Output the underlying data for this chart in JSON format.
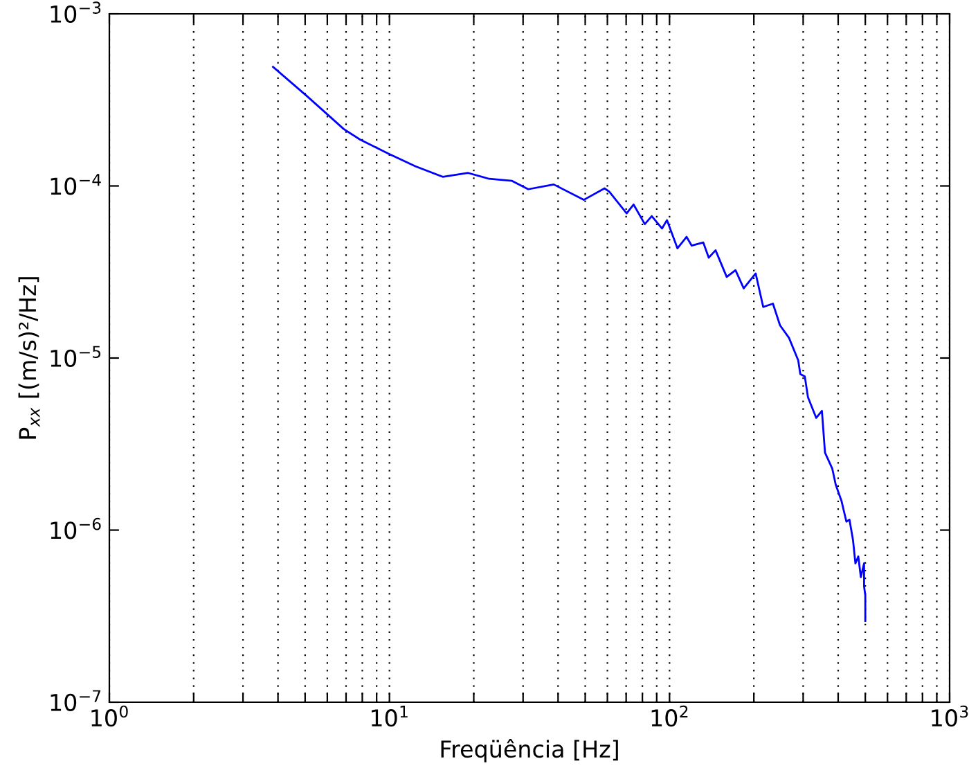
{
  "chart_data": {
    "type": "line",
    "xlabel": "Freqüência [Hz]",
    "ylabel": "P$_{xx}$ [(m/s)²/Hz]",
    "log": "xy",
    "grid": "x",
    "line_style": "solid",
    "xlim": [
      1,
      1000
    ],
    "ylim": [
      1e-07,
      0.001
    ],
    "xticks": [
      {
        "value": 1,
        "label": "10$^{0}$"
      },
      {
        "value": 2,
        "label": null
      },
      {
        "value": 3,
        "label": null
      },
      {
        "value": 4,
        "label": null
      },
      {
        "value": 5,
        "label": null
      },
      {
        "value": 6,
        "label": null
      },
      {
        "value": 7,
        "label": null
      },
      {
        "value": 8,
        "label": null
      },
      {
        "value": 9,
        "label": null
      },
      {
        "value": 10,
        "label": "10$^{1}$"
      },
      {
        "value": 20,
        "label": null
      },
      {
        "value": 30,
        "label": null
      },
      {
        "value": 40,
        "label": null
      },
      {
        "value": 50,
        "label": null
      },
      {
        "value": 60,
        "label": null
      },
      {
        "value": 70,
        "label": null
      },
      {
        "value": 80,
        "label": null
      },
      {
        "value": 90,
        "label": null
      },
      {
        "value": 100,
        "label": "10$^{2}$"
      },
      {
        "value": 200,
        "label": null
      },
      {
        "value": 300,
        "label": null
      },
      {
        "value": 400,
        "label": null
      },
      {
        "value": 500,
        "label": null
      },
      {
        "value": 600,
        "label": null
      },
      {
        "value": 700,
        "label": null
      },
      {
        "value": 800,
        "label": null
      },
      {
        "value": 900,
        "label": null
      },
      {
        "value": 1000,
        "label": "10$^{3}$"
      }
    ],
    "yticks": [
      {
        "value": 1e-07,
        "label": "10$^{−7}$"
      },
      {
        "value": 1e-06,
        "label": "10$^{−6}$"
      },
      {
        "value": 1e-05,
        "label": "10$^{−5}$"
      },
      {
        "value": 0.0001,
        "label": "10$^{−4}$"
      },
      {
        "value": 0.001,
        "label": "10$^{−3}$"
      }
    ],
    "series": [
      {
        "color": "#0000ff",
        "x": [
          3.84,
          5.07,
          6.87,
          7.85,
          9.93,
          12.4,
          15.5,
          19.1,
          22.7,
          27.4,
          31.3,
          38.6,
          49.4,
          58.6,
          60.9,
          70.3,
          74.4,
          81.6,
          86.4,
          94.0,
          97.9,
          106.7,
          115,
          120,
          132,
          138,
          146,
          160,
          172,
          184,
          203,
          216,
          234,
          248,
          267,
          288,
          293,
          304,
          312,
          334,
          350,
          359,
          381,
          392,
          411,
          428,
          439,
          452,
          461,
          472,
          482,
          495,
          495,
          500,
          500
        ],
        "values": [
          0.000492,
          0.000333,
          0.000214,
          0.000186,
          0.000154,
          0.00013,
          0.000113,
          0.000119,
          0.00011,
          0.000107,
          9.57e-05,
          0.000102,
          8.3e-05,
          9.68e-05,
          9.27e-05,
          6.93e-05,
          7.8e-05,
          6e-05,
          6.68e-05,
          5.66e-05,
          6.33e-05,
          4.34e-05,
          5.06e-05,
          4.5e-05,
          4.69e-05,
          3.83e-05,
          4.23e-05,
          2.96e-05,
          3.24e-05,
          2.54e-05,
          3.1e-05,
          1.98e-05,
          2.07e-05,
          1.55e-05,
          1.31e-05,
          9.7e-06,
          8.07e-06,
          7.83e-06,
          5.93e-06,
          4.49e-06,
          4.93e-06,
          2.82e-06,
          2.28e-06,
          1.84e-06,
          1.48e-06,
          1.12e-06,
          1.15e-06,
          8.74e-07,
          6.41e-07,
          7.03e-07,
          5.33e-07,
          6.41e-07,
          4.71e-07,
          4.17e-07,
          2.97e-07
        ]
      }
    ]
  }
}
